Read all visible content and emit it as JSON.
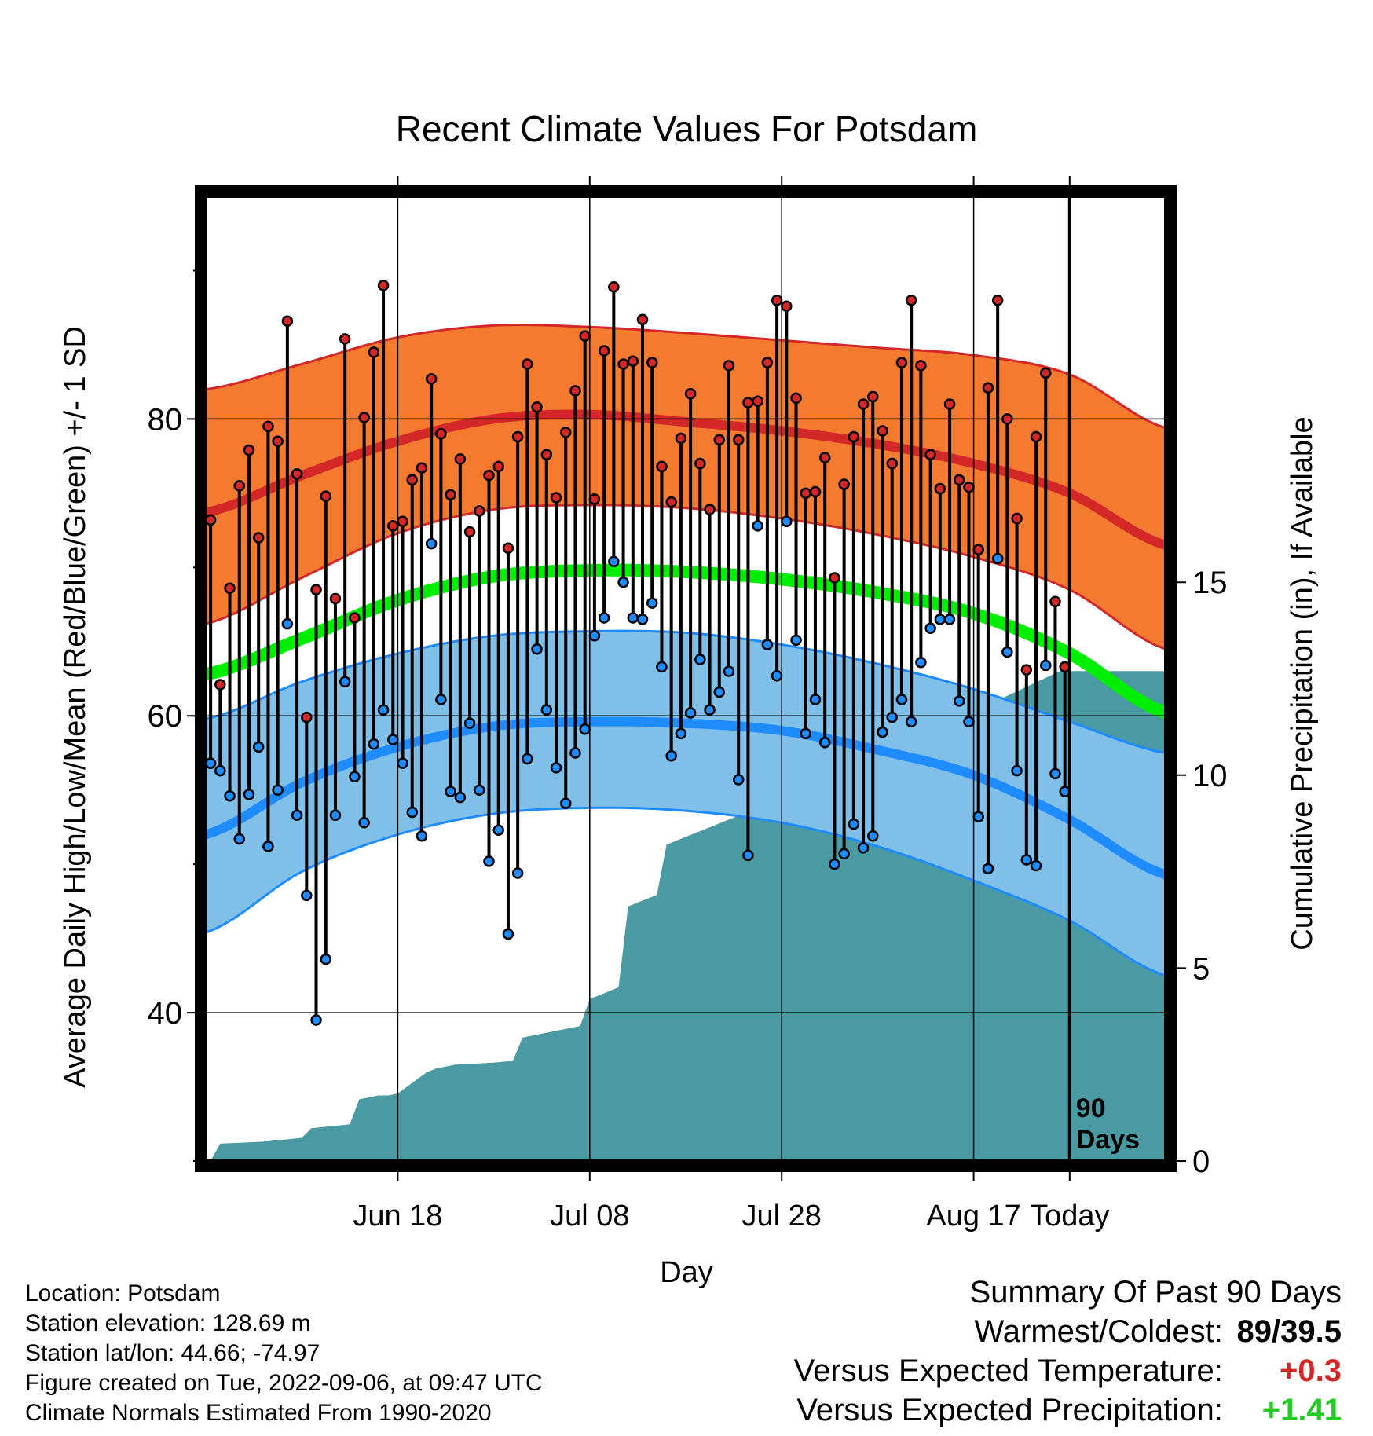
{
  "chart_data": {
    "type": "line",
    "title": "Recent Climate Values For Potsdam",
    "xlabel": "Day",
    "ylabel": "Average Daily High/Low/Mean (Red/Blue/Green) +/- 1 SD",
    "y2label": "Cumulative Precipitation (in), If Available",
    "x_tick_labels": [
      "Jun 18",
      "Jul 08",
      "Jul 28",
      "Aug 17",
      "Today"
    ],
    "y_ticks": [
      40,
      60,
      80
    ],
    "y2_ticks": [
      0,
      5,
      10,
      15
    ],
    "ylim": [
      30,
      95
    ],
    "y2lim": [
      0,
      25
    ],
    "xlim_days": [
      -90,
      10
    ],
    "today_label": "90 Days",
    "colors": {
      "high_band": "#f47a30",
      "high_line": "#d42828",
      "low_band": "#80c0e8",
      "low_line": "#1e8cff",
      "mean_line": "#00ee00",
      "precip": "#4a9aa3"
    },
    "normals": {
      "days": [
        -90,
        -80,
        -70,
        -60,
        -50,
        -40,
        -30,
        -20,
        -10,
        0,
        10
      ],
      "high_mean": [
        73.7,
        76.2,
        78.5,
        80.0,
        80.3,
        79.8,
        79.2,
        78.3,
        77.0,
        75.0,
        71.5
      ],
      "high_upper": [
        82.0,
        83.7,
        85.5,
        86.3,
        86.2,
        85.8,
        85.3,
        84.8,
        84.3,
        83.0,
        79.4
      ],
      "high_lower": [
        66.2,
        69.3,
        72.3,
        73.9,
        74.2,
        74.0,
        73.3,
        72.2,
        70.7,
        68.5,
        64.5
      ],
      "mean": [
        62.8,
        65.2,
        67.8,
        69.4,
        69.8,
        69.7,
        69.2,
        68.3,
        66.9,
        64.2,
        60.2
      ],
      "low_mean": [
        52.0,
        55.5,
        57.9,
        59.3,
        59.6,
        59.5,
        59.0,
        57.7,
        56.0,
        53.0,
        49.3
      ],
      "low_upper": [
        59.8,
        62.3,
        64.2,
        65.4,
        65.7,
        65.6,
        64.8,
        63.5,
        61.8,
        59.6,
        57.5
      ],
      "low_lower": [
        45.4,
        49.5,
        52.0,
        53.4,
        53.8,
        53.6,
        52.8,
        51.2,
        48.9,
        46.2,
        42.5
      ]
    },
    "daily": {
      "start_day": -90,
      "high": [
        73.2,
        62.1,
        68.6,
        75.5,
        77.9,
        72.0,
        79.5,
        78.5,
        86.6,
        76.3,
        59.9,
        68.5,
        74.8,
        67.9,
        85.4,
        66.6,
        80.1,
        84.5,
        89.0,
        72.8,
        73.1,
        75.9,
        76.7,
        82.7,
        79.0,
        74.9,
        77.3,
        72.4,
        73.8,
        76.2,
        76.8,
        71.3,
        78.8,
        83.7,
        80.8,
        77.6,
        74.7,
        79.1,
        81.9,
        85.6,
        74.6,
        84.6,
        88.9,
        83.7,
        83.9,
        86.7,
        83.8,
        76.8,
        74.4,
        78.7,
        81.7,
        77.0,
        73.9,
        78.6,
        83.6,
        78.6,
        81.1,
        81.2,
        83.8,
        88.0,
        87.6,
        81.4,
        75.0,
        75.1,
        77.4,
        69.3,
        75.6,
        78.8,
        81.0,
        81.5,
        79.2,
        77.0,
        83.8,
        88.0,
        83.6,
        77.6,
        75.3,
        81.0,
        75.9,
        75.4,
        71.2,
        82.1,
        88.0,
        80.0,
        73.3,
        63.1,
        78.8,
        83.1,
        67.7,
        63.3
      ],
      "low": [
        56.8,
        56.3,
        54.6,
        51.7,
        54.7,
        57.9,
        51.2,
        55.0,
        66.2,
        53.3,
        47.9,
        39.5,
        43.6,
        53.3,
        62.3,
        55.9,
        52.8,
        58.1,
        60.4,
        58.4,
        56.8,
        53.5,
        51.9,
        71.6,
        61.1,
        54.9,
        54.5,
        59.5,
        55.0,
        50.2,
        52.3,
        45.3,
        49.4,
        57.1,
        64.5,
        60.4,
        56.5,
        54.1,
        57.5,
        59.1,
        65.4,
        66.6,
        70.4,
        69.0,
        66.6,
        66.5,
        67.6,
        63.3,
        57.3,
        58.8,
        60.2,
        63.8,
        60.4,
        61.6,
        63.0,
        55.7,
        50.6,
        72.8,
        64.8,
        62.7,
        73.1,
        65.1,
        58.8,
        61.1,
        58.2,
        50.0,
        50.7,
        52.7,
        51.1,
        51.9,
        58.9,
        59.9,
        61.1,
        59.6,
        63.6,
        65.9,
        66.5,
        66.5,
        61.0,
        59.6,
        53.2,
        49.7,
        70.6,
        64.3,
        56.3,
        50.3,
        49.9,
        63.4,
        56.1,
        54.9
      ]
    },
    "precip": {
      "days": [
        -89.5,
        -88.5,
        -84,
        -83,
        -82,
        -80,
        -79,
        -75,
        -74,
        -72,
        -71,
        -70,
        -67,
        -66,
        -64,
        -60,
        -58,
        -57,
        -51,
        -50,
        -47,
        -46,
        -43,
        -42,
        -40,
        -38,
        -35,
        -34,
        -32,
        -29,
        -28,
        -26,
        -25,
        -24,
        -22,
        -17,
        -16,
        -13,
        -11,
        -10,
        -8,
        -7,
        -1,
        10
      ],
      "values": [
        0.0,
        0.45,
        0.5,
        0.55,
        0.55,
        0.6,
        0.85,
        0.95,
        1.6,
        1.7,
        1.7,
        1.75,
        2.3,
        2.4,
        2.5,
        2.55,
        2.6,
        3.2,
        3.5,
        4.2,
        4.5,
        6.6,
        6.9,
        8.2,
        8.4,
        8.6,
        8.9,
        9.0,
        9.2,
        9.5,
        9.5,
        9.7,
        9.9,
        10.0,
        10.0,
        10.0,
        10.0,
        10.2,
        11.5,
        11.6,
        11.7,
        12.0,
        12.7,
        12.7
      ]
    }
  },
  "info": {
    "location": "Location: Potsdam",
    "elevation": "Station elevation: 128.69 m",
    "latlon": "Station lat/lon: 44.66; -74.97",
    "created": "Figure created on Tue, 2022-09-06, at 09:47 UTC",
    "normals": "Climate Normals Estimated From 1990-2020"
  },
  "summary": {
    "title": "Summary Of Past 90 Days",
    "warm_label": "Warmest/Coldest:",
    "warm_value": "89/39.5",
    "temp_label": "Versus Expected Temperature:",
    "temp_value": "+0.3",
    "temp_color": "#d42828",
    "precip_label": "Versus Expected Precipitation:",
    "precip_value": "+1.41",
    "precip_color": "#22cc22"
  }
}
